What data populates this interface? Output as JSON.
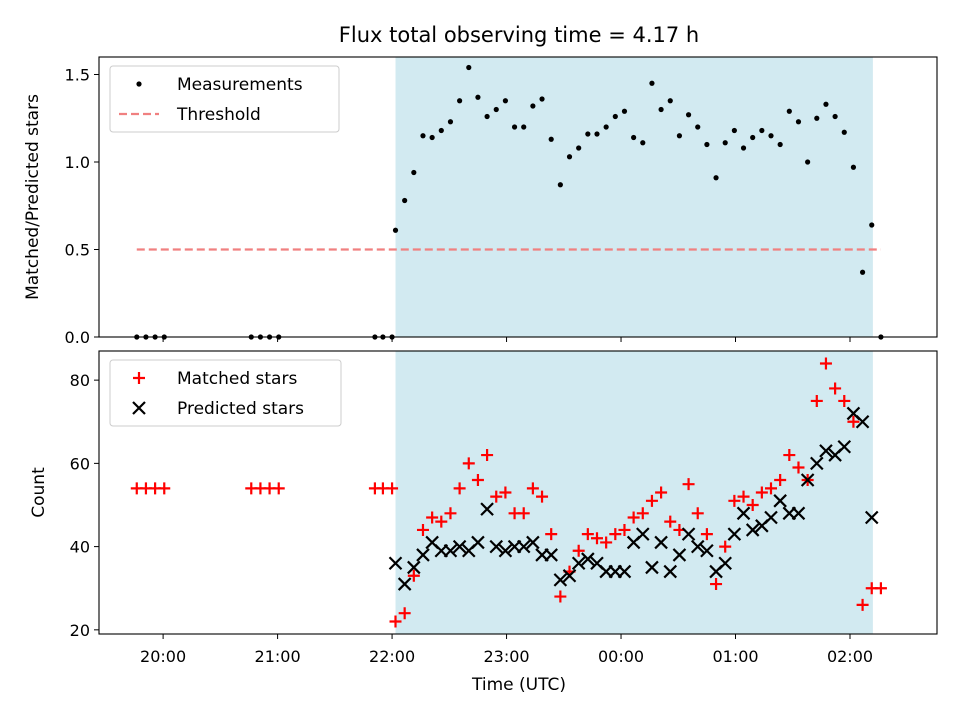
{
  "chart_data": {
    "title": "Flux total observing time = 4.17 h",
    "xlabel": "Time (UTC)",
    "x_unit": "hours since 00:00 UTC (negative = previous day)",
    "x_ticks": [
      {
        "value": -4,
        "label": "20:00"
      },
      {
        "value": -3,
        "label": "21:00"
      },
      {
        "value": -2,
        "label": "22:00"
      },
      {
        "value": -1,
        "label": "23:00"
      },
      {
        "value": 0,
        "label": "00:00"
      },
      {
        "value": 1,
        "label": "01:00"
      },
      {
        "value": 2,
        "label": "02:00"
      }
    ],
    "xlim": [
      -4.56,
      2.76
    ],
    "shaded_interval": {
      "start": -1.97,
      "end": 2.2,
      "color": "#add8e6"
    },
    "panels": [
      {
        "id": "ratio",
        "type": "scatter",
        "ylabel": "Matched/Predicted stars",
        "ylim": [
          0,
          1.6
        ],
        "y_ticks": [
          {
            "value": 0,
            "label": "0.0"
          },
          {
            "value": 0.5,
            "label": "0.5"
          },
          {
            "value": 1.0,
            "label": "1.0"
          },
          {
            "value": 1.5,
            "label": "1.5"
          }
        ],
        "legend_position": "upper-left",
        "series": [
          {
            "name": "Measurements",
            "marker": "dot",
            "color": "#000000",
            "points": [
              [
                -4.23,
                0.0
              ],
              [
                -4.15,
                0.0
              ],
              [
                -4.07,
                0.0
              ],
              [
                -3.99,
                0.0
              ],
              [
                -3.23,
                0.0
              ],
              [
                -3.15,
                0.0
              ],
              [
                -3.07,
                0.0
              ],
              [
                -2.99,
                0.0
              ],
              [
                -2.15,
                0.0
              ],
              [
                -2.08,
                0.0
              ],
              [
                -2.0,
                0.0
              ],
              [
                -1.97,
                0.61
              ],
              [
                -1.89,
                0.78
              ],
              [
                -1.81,
                0.94
              ],
              [
                -1.73,
                1.15
              ],
              [
                -1.65,
                1.14
              ],
              [
                -1.57,
                1.18
              ],
              [
                -1.49,
                1.23
              ],
              [
                -1.41,
                1.35
              ],
              [
                -1.33,
                1.54
              ],
              [
                -1.25,
                1.37
              ],
              [
                -1.17,
                1.26
              ],
              [
                -1.09,
                1.3
              ],
              [
                -1.01,
                1.35
              ],
              [
                -0.93,
                1.2
              ],
              [
                -0.85,
                1.2
              ],
              [
                -0.77,
                1.32
              ],
              [
                -0.69,
                1.36
              ],
              [
                -0.61,
                1.13
              ],
              [
                -0.53,
                0.87
              ],
              [
                -0.45,
                1.03
              ],
              [
                -0.37,
                1.08
              ],
              [
                -0.29,
                1.16
              ],
              [
                -0.21,
                1.16
              ],
              [
                -0.13,
                1.2
              ],
              [
                -0.05,
                1.26
              ],
              [
                0.03,
                1.29
              ],
              [
                0.11,
                1.14
              ],
              [
                0.19,
                1.11
              ],
              [
                0.27,
                1.45
              ],
              [
                0.35,
                1.3
              ],
              [
                0.43,
                1.35
              ],
              [
                0.51,
                1.15
              ],
              [
                0.59,
                1.27
              ],
              [
                0.67,
                1.2
              ],
              [
                0.75,
                1.1
              ],
              [
                0.83,
                0.91
              ],
              [
                0.91,
                1.11
              ],
              [
                0.99,
                1.18
              ],
              [
                1.07,
                1.08
              ],
              [
                1.15,
                1.14
              ],
              [
                1.23,
                1.18
              ],
              [
                1.31,
                1.15
              ],
              [
                1.39,
                1.1
              ],
              [
                1.47,
                1.29
              ],
              [
                1.55,
                1.23
              ],
              [
                1.63,
                1.0
              ],
              [
                1.71,
                1.25
              ],
              [
                1.79,
                1.33
              ],
              [
                1.87,
                1.26
              ],
              [
                1.95,
                1.17
              ],
              [
                2.03,
                0.97
              ],
              [
                2.11,
                0.37
              ],
              [
                2.19,
                0.64
              ],
              [
                2.27,
                0.0
              ]
            ]
          },
          {
            "name": "Threshold",
            "marker": "dashed-line",
            "color": "#f08080",
            "points": [
              [
                -4.23,
                0.5
              ],
              [
                2.27,
                0.5
              ]
            ]
          }
        ]
      },
      {
        "id": "counts",
        "type": "scatter",
        "ylabel": "Count",
        "ylim": [
          19,
          87
        ],
        "y_ticks": [
          {
            "value": 20,
            "label": "20"
          },
          {
            "value": 40,
            "label": "40"
          },
          {
            "value": 60,
            "label": "60"
          },
          {
            "value": 80,
            "label": "80"
          }
        ],
        "legend_position": "upper-left",
        "series": [
          {
            "name": "Matched stars",
            "marker": "plus",
            "color": "#ff0000",
            "points": [
              [
                -4.23,
                54
              ],
              [
                -4.15,
                54
              ],
              [
                -4.07,
                54
              ],
              [
                -3.99,
                54
              ],
              [
                -3.23,
                54
              ],
              [
                -3.15,
                54
              ],
              [
                -3.07,
                54
              ],
              [
                -2.99,
                54
              ],
              [
                -2.15,
                54
              ],
              [
                -2.08,
                54
              ],
              [
                -2.0,
                54
              ],
              [
                -1.97,
                22
              ],
              [
                -1.89,
                24
              ],
              [
                -1.81,
                33
              ],
              [
                -1.73,
                44
              ],
              [
                -1.65,
                47
              ],
              [
                -1.57,
                46
              ],
              [
                -1.49,
                48
              ],
              [
                -1.41,
                54
              ],
              [
                -1.33,
                60
              ],
              [
                -1.25,
                56
              ],
              [
                -1.17,
                62
              ],
              [
                -1.09,
                52
              ],
              [
                -1.01,
                53
              ],
              [
                -0.93,
                48
              ],
              [
                -0.85,
                48
              ],
              [
                -0.77,
                54
              ],
              [
                -0.69,
                52
              ],
              [
                -0.61,
                43
              ],
              [
                -0.53,
                28
              ],
              [
                -0.45,
                34
              ],
              [
                -0.37,
                39
              ],
              [
                -0.29,
                43
              ],
              [
                -0.21,
                42
              ],
              [
                -0.13,
                41
              ],
              [
                -0.05,
                43
              ],
              [
                0.03,
                44
              ],
              [
                0.11,
                47
              ],
              [
                0.19,
                48
              ],
              [
                0.27,
                51
              ],
              [
                0.35,
                53
              ],
              [
                0.43,
                46
              ],
              [
                0.51,
                44
              ],
              [
                0.59,
                55
              ],
              [
                0.67,
                48
              ],
              [
                0.75,
                43
              ],
              [
                0.83,
                31
              ],
              [
                0.91,
                40
              ],
              [
                0.99,
                51
              ],
              [
                1.07,
                52
              ],
              [
                1.15,
                50
              ],
              [
                1.23,
                53
              ],
              [
                1.31,
                54
              ],
              [
                1.39,
                56
              ],
              [
                1.47,
                62
              ],
              [
                1.55,
                59
              ],
              [
                1.63,
                56
              ],
              [
                1.71,
                75
              ],
              [
                1.79,
                84
              ],
              [
                1.87,
                78
              ],
              [
                1.95,
                75
              ],
              [
                2.03,
                70
              ],
              [
                2.11,
                26
              ],
              [
                2.19,
                30
              ],
              [
                2.27,
                30
              ]
            ]
          },
          {
            "name": "Predicted stars",
            "marker": "x",
            "color": "#000000",
            "points": [
              [
                -1.97,
                36
              ],
              [
                -1.89,
                31
              ],
              [
                -1.81,
                35
              ],
              [
                -1.73,
                38
              ],
              [
                -1.65,
                41
              ],
              [
                -1.57,
                39
              ],
              [
                -1.49,
                39
              ],
              [
                -1.41,
                40
              ],
              [
                -1.33,
                39
              ],
              [
                -1.25,
                41
              ],
              [
                -1.17,
                49
              ],
              [
                -1.09,
                40
              ],
              [
                -1.01,
                39
              ],
              [
                -0.93,
                40
              ],
              [
                -0.85,
                40
              ],
              [
                -0.77,
                41
              ],
              [
                -0.69,
                38
              ],
              [
                -0.61,
                38
              ],
              [
                -0.53,
                32
              ],
              [
                -0.45,
                33
              ],
              [
                -0.37,
                36
              ],
              [
                -0.29,
                37
              ],
              [
                -0.21,
                36
              ],
              [
                -0.13,
                34
              ],
              [
                -0.05,
                34
              ],
              [
                0.03,
                34
              ],
              [
                0.11,
                41
              ],
              [
                0.19,
                43
              ],
              [
                0.27,
                35
              ],
              [
                0.35,
                41
              ],
              [
                0.43,
                34
              ],
              [
                0.51,
                38
              ],
              [
                0.59,
                43
              ],
              [
                0.67,
                40
              ],
              [
                0.75,
                39
              ],
              [
                0.83,
                34
              ],
              [
                0.91,
                36
              ],
              [
                0.99,
                43
              ],
              [
                1.07,
                48
              ],
              [
                1.15,
                44
              ],
              [
                1.23,
                45
              ],
              [
                1.31,
                47
              ],
              [
                1.39,
                51
              ],
              [
                1.47,
                48
              ],
              [
                1.55,
                48
              ],
              [
                1.63,
                56
              ],
              [
                1.71,
                60
              ],
              [
                1.79,
                63
              ],
              [
                1.87,
                62
              ],
              [
                1.95,
                64
              ],
              [
                2.03,
                72
              ],
              [
                2.11,
                70
              ],
              [
                2.19,
                47
              ]
            ]
          }
        ]
      }
    ]
  }
}
